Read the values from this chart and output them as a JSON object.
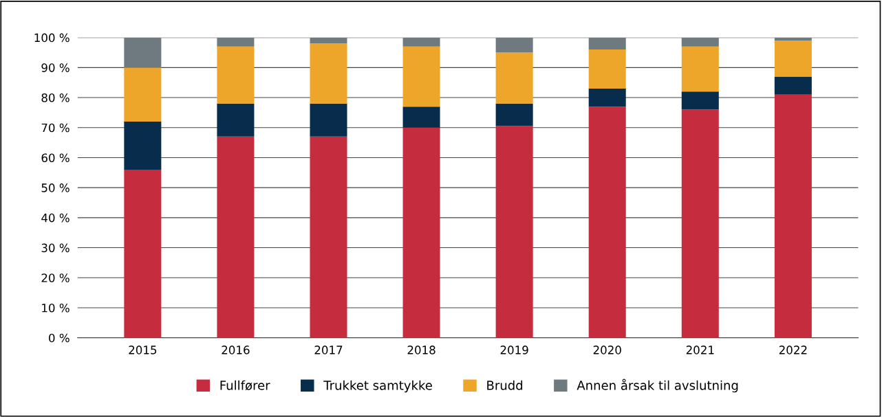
{
  "chart_data": {
    "type": "bar",
    "stacked": true,
    "categories": [
      "2015",
      "2016",
      "2017",
      "2018",
      "2019",
      "2020",
      "2021",
      "2022"
    ],
    "series": [
      {
        "name": "Fullfører",
        "color": "#c52d3e",
        "values": [
          56,
          67,
          67,
          70,
          70.5,
          77,
          76,
          81
        ]
      },
      {
        "name": "Trukket samtykke",
        "color": "#072c4c",
        "values": [
          16,
          11,
          11,
          7,
          7.5,
          6,
          6,
          6
        ]
      },
      {
        "name": "Brudd",
        "color": "#eea62a",
        "values": [
          18,
          19,
          20,
          20,
          17,
          13,
          15,
          12
        ]
      },
      {
        "name": "Annen årsak til avslutning",
        "color": "#6f7a80",
        "values": [
          10,
          3,
          2,
          3,
          5,
          4,
          3,
          1
        ]
      }
    ],
    "ylim": [
      0,
      100
    ],
    "yticks": [
      {
        "value": 0,
        "label": "0 %"
      },
      {
        "value": 10,
        "label": "10 %"
      },
      {
        "value": 20,
        "label": "20 %"
      },
      {
        "value": 30,
        "label": "30 %"
      },
      {
        "value": 40,
        "label": "40 %"
      },
      {
        "value": 50,
        "label": "50 %"
      },
      {
        "value": 60,
        "label": "60 %"
      },
      {
        "value": 70,
        "label": "70 %"
      },
      {
        "value": 80,
        "label": "80 %"
      },
      {
        "value": 90,
        "label": "90 %"
      },
      {
        "value": 100,
        "label": "100 %"
      }
    ],
    "grid": "y",
    "legend": "bottom"
  }
}
